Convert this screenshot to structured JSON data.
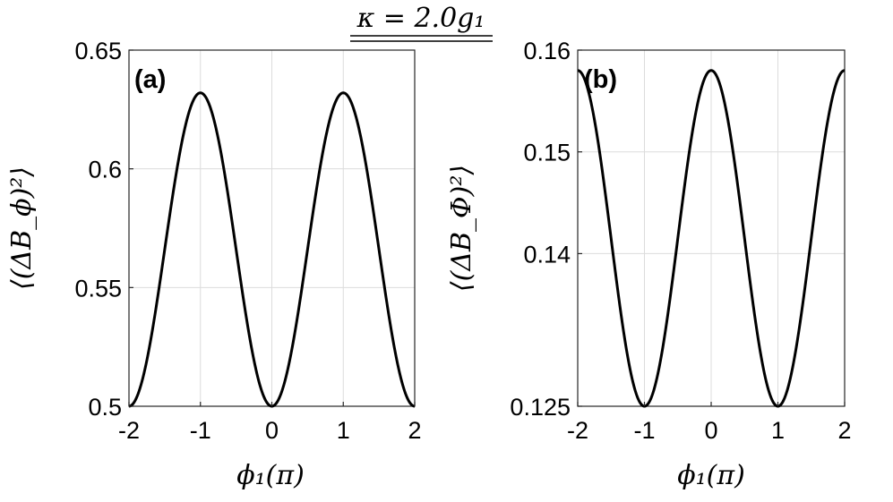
{
  "suptitle": "κ = 2.0g₁",
  "chart_data": [
    {
      "type": "line",
      "panel_label": "(a)",
      "xlabel": "ϕ₁(π)",
      "ylabel": "⟨(ΔB_ϕ)²⟩",
      "xlim": [
        -2,
        2
      ],
      "ylim": [
        0.5,
        0.65
      ],
      "xticks": [
        "-2",
        "-1",
        "0",
        "1",
        "2"
      ],
      "yticks": [
        "0.5",
        "0.55",
        "0.6",
        "0.65"
      ],
      "ytick_values": [
        0.5,
        0.55,
        0.6,
        0.65
      ],
      "grid": true,
      "series": [
        {
          "x": [
            -2,
            -1.75,
            -1.5,
            -1.25,
            -1,
            -0.75,
            -0.5,
            -0.25,
            0,
            0.25,
            0.5,
            0.75,
            1,
            1.25,
            1.5,
            1.75,
            2
          ],
          "y": [
            0.5,
            0.519,
            0.566,
            0.613,
            0.632,
            0.613,
            0.566,
            0.519,
            0.5,
            0.519,
            0.566,
            0.613,
            0.632,
            0.613,
            0.566,
            0.519,
            0.5
          ]
        }
      ]
    },
    {
      "type": "line",
      "panel_label": "(b)",
      "xlabel": "ϕ₁(π)",
      "ylabel": "⟨(ΔB_Φ)²⟩",
      "xlim": [
        -2,
        2
      ],
      "ylim": [
        0.125,
        0.16
      ],
      "xticks": [
        "-2",
        "-1",
        "0",
        "1",
        "2"
      ],
      "yticks": [
        "0.125",
        "0.14",
        "0.15",
        "0.16"
      ],
      "ytick_values": [
        0.125,
        0.14,
        0.15,
        0.16
      ],
      "grid": true,
      "series": [
        {
          "x": [
            -2,
            -1.75,
            -1.5,
            -1.25,
            -1,
            -0.75,
            -0.5,
            -0.25,
            0,
            0.25,
            0.5,
            0.75,
            1,
            1.25,
            1.5,
            1.75,
            2
          ],
          "y": [
            0.158,
            0.1532,
            0.1415,
            0.1298,
            0.125,
            0.1298,
            0.1415,
            0.1532,
            0.158,
            0.1532,
            0.1415,
            0.1298,
            0.125,
            0.1298,
            0.1415,
            0.1532,
            0.158
          ]
        }
      ]
    }
  ]
}
